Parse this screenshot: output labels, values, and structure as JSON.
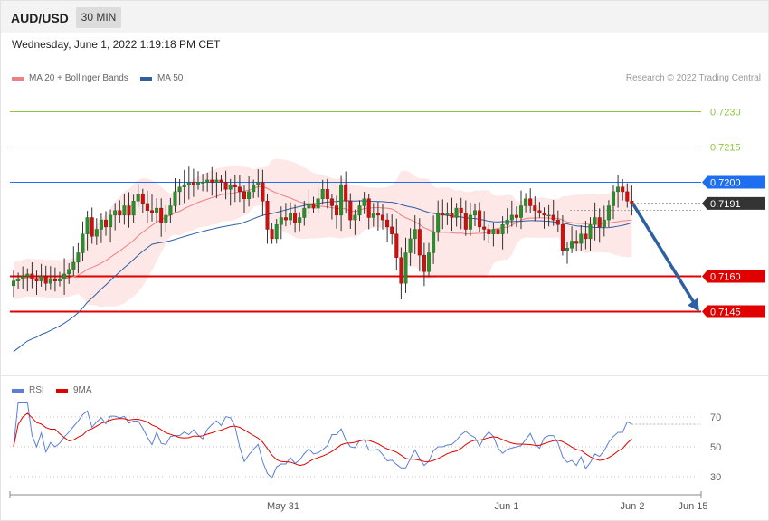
{
  "header": {
    "symbol": "AUD/USD",
    "timeframe": "30 MIN",
    "datetime": "Wednesday, June 1, 2022 1:19:18 PM CET",
    "copyright": "Research © 2022 Trading Central"
  },
  "legend": {
    "main": [
      {
        "label": "MA 20 + Bollinger Bands",
        "color": "#f08080"
      },
      {
        "label": "MA 50",
        "color": "#2e5fa0"
      }
    ],
    "rsi": [
      {
        "label": "RSI",
        "color": "#5b7fd6"
      },
      {
        "label": "9MA",
        "color": "#e00000"
      }
    ]
  },
  "chart_data": [
    {
      "type": "candlestick",
      "ylim": [
        0.7138,
        0.7238
      ],
      "levels": [
        {
          "value": 0.723,
          "label": "0.7230",
          "kind": "resistance-minor",
          "color": "#8cc63f"
        },
        {
          "value": 0.7215,
          "label": "0.7215",
          "kind": "resistance-minor",
          "color": "#8cc63f"
        },
        {
          "value": 0.72,
          "label": "0.7200",
          "kind": "pivot",
          "color": "#1e6ff0"
        },
        {
          "value": 0.7191,
          "label": "0.7191",
          "kind": "last-price",
          "color": "#333333"
        },
        {
          "value": 0.716,
          "label": "0.7160",
          "kind": "support",
          "color": "#e00000"
        },
        {
          "value": 0.7145,
          "label": "0.7145",
          "kind": "support",
          "color": "#e00000"
        }
      ],
      "projection": {
        "from": 0.7191,
        "to": 0.7145,
        "color": "#2e5fa0"
      },
      "x_ticks": [
        "May 31",
        "Jun 1",
        "Jun 2",
        "Jun 15"
      ],
      "closes": [
        0.7158,
        0.7159,
        0.716,
        0.7161,
        0.7159,
        0.7158,
        0.716,
        0.7157,
        0.7159,
        0.7158,
        0.7159,
        0.7161,
        0.7163,
        0.7166,
        0.717,
        0.7178,
        0.7185,
        0.7177,
        0.718,
        0.7184,
        0.7181,
        0.7186,
        0.7188,
        0.7186,
        0.719,
        0.7186,
        0.7192,
        0.7195,
        0.7191,
        0.7188,
        0.7187,
        0.7189,
        0.7183,
        0.7186,
        0.719,
        0.7196,
        0.7198,
        0.7199,
        0.72,
        0.7199,
        0.72,
        0.72,
        0.7201,
        0.72,
        0.7201,
        0.72,
        0.7197,
        0.7199,
        0.7198,
        0.7196,
        0.7193,
        0.7196,
        0.7199,
        0.72,
        0.7192,
        0.718,
        0.7176,
        0.7182,
        0.7185,
        0.7184,
        0.7187,
        0.7183,
        0.7185,
        0.7189,
        0.7191,
        0.7189,
        0.7193,
        0.7197,
        0.7193,
        0.719,
        0.7186,
        0.7199,
        0.7192,
        0.7184,
        0.7186,
        0.719,
        0.7193,
        0.7185,
        0.7187,
        0.7186,
        0.7184,
        0.7181,
        0.7178,
        0.7168,
        0.7157,
        0.717,
        0.7176,
        0.718,
        0.7169,
        0.7162,
        0.717,
        0.7179,
        0.7187,
        0.7186,
        0.7187,
        0.7185,
        0.7189,
        0.7187,
        0.718,
        0.7186,
        0.7188,
        0.7181,
        0.718,
        0.7178,
        0.718,
        0.7178,
        0.7182,
        0.7184,
        0.7186,
        0.7185,
        0.719,
        0.7193,
        0.719,
        0.7188,
        0.7187,
        0.7186,
        0.7186,
        0.7184,
        0.7182,
        0.7171,
        0.7172,
        0.7175,
        0.7174,
        0.7178,
        0.7176,
        0.7182,
        0.7185,
        0.7181,
        0.7184,
        0.719,
        0.7196,
        0.7198,
        0.7196,
        0.7192,
        0.7191
      ]
    },
    {
      "type": "line",
      "title": "RSI",
      "ylim": [
        20,
        85
      ],
      "y_ticks": [
        70,
        50,
        30
      ]
    }
  ]
}
